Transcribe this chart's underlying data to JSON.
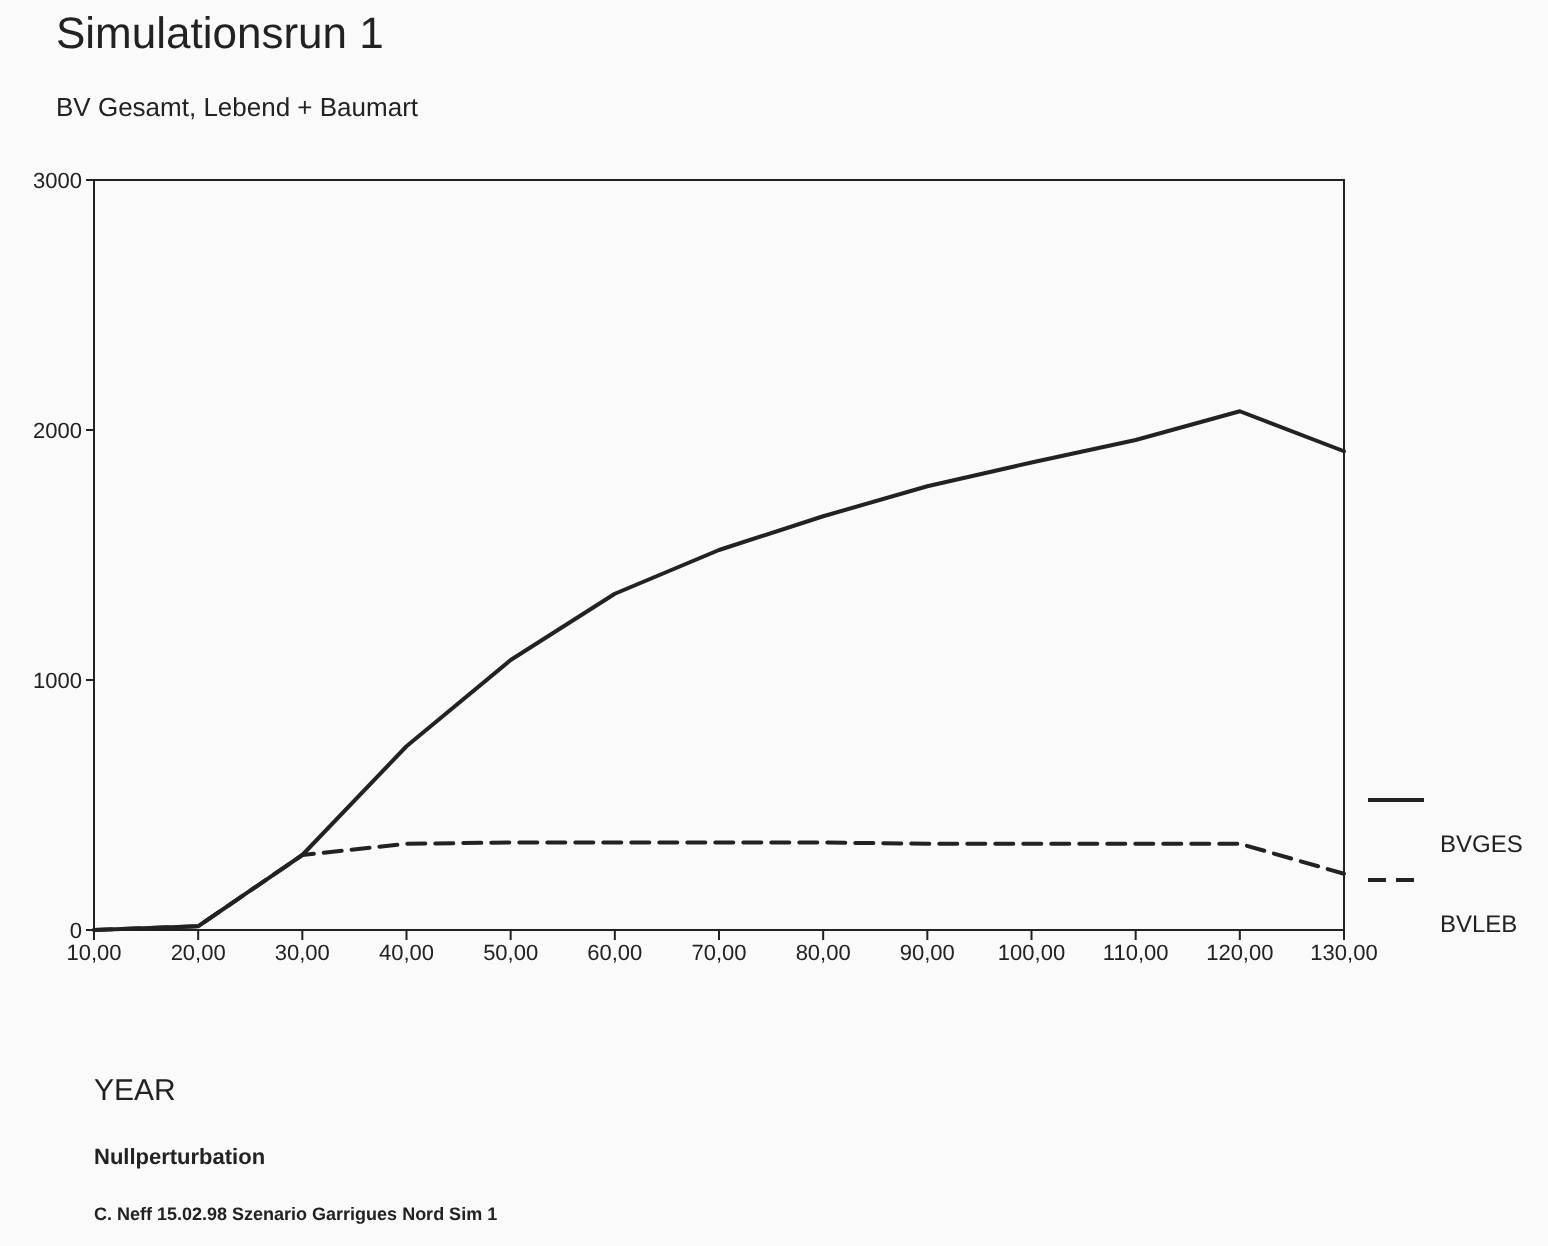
{
  "chart_data": {
    "type": "line",
    "title": "Simulationsrun 1",
    "subtitle": "BV Gesamt, Lebend + Baumart",
    "xlabel": "YEAR",
    "annotations": [
      "Nullperturbation",
      "C. Neff 15.02.98 Szenario Garrigues Nord Sim 1"
    ],
    "x": [
      10,
      20,
      30,
      40,
      50,
      60,
      70,
      80,
      90,
      100,
      110,
      120,
      130
    ],
    "series": [
      {
        "name": "BVGES",
        "color": "#222222",
        "line_style": "solid",
        "values": [
          0,
          15,
          300,
          735,
          1080,
          1345,
          1520,
          1655,
          1775,
          1870,
          1960,
          2075,
          1915
        ]
      },
      {
        "name": "BVLEB",
        "color": "#222222",
        "line_style": "dashed",
        "values": [
          0,
          15,
          300,
          345,
          350,
          350,
          350,
          350,
          345,
          345,
          345,
          345,
          225
        ]
      }
    ],
    "xlim": [
      10,
      130
    ],
    "xticks": [
      {
        "value": 10,
        "label": "10,00"
      },
      {
        "value": 20,
        "label": "20,00"
      },
      {
        "value": 30,
        "label": "30,00"
      },
      {
        "value": 40,
        "label": "40,00"
      },
      {
        "value": 50,
        "label": "50,00"
      },
      {
        "value": 60,
        "label": "60,00"
      },
      {
        "value": 70,
        "label": "70,00"
      },
      {
        "value": 80,
        "label": "80,00"
      },
      {
        "value": 90,
        "label": "90,00"
      },
      {
        "value": 100,
        "label": "100,00"
      },
      {
        "value": 110,
        "label": "110,00"
      },
      {
        "value": 120,
        "label": "120,00"
      },
      {
        "value": 130,
        "label": "130,00"
      }
    ],
    "ylim": [
      0,
      3000
    ],
    "yticks": [
      0,
      1000,
      2000,
      3000
    ],
    "grid": false,
    "legend": "right",
    "marker": "none"
  }
}
